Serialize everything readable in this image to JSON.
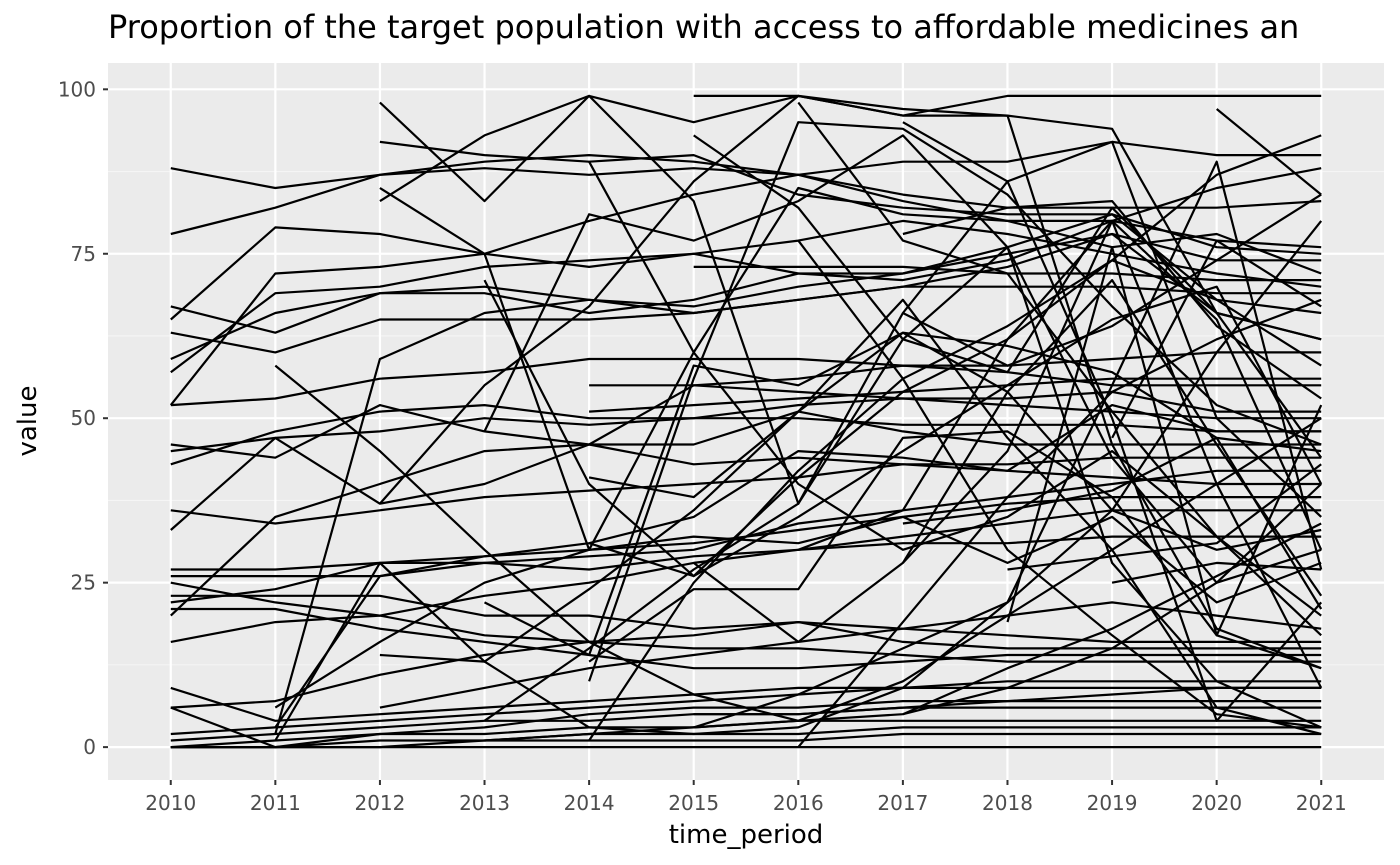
{
  "chart_data": {
    "type": "line",
    "title": "Proportion of the target population with access to affordable medicines an",
    "xlabel": "time_period",
    "ylabel": "value",
    "x": [
      2010,
      2011,
      2012,
      2013,
      2014,
      2015,
      2016,
      2017,
      2018,
      2019,
      2020,
      2021
    ],
    "x_ticks": [
      "2010",
      "2011",
      "2012",
      "2013",
      "2014",
      "2015",
      "2016",
      "2017",
      "2018",
      "2019",
      "2020",
      "2021"
    ],
    "y_ticks": [
      "0",
      "25",
      "50",
      "75",
      "100"
    ],
    "xlim": [
      2009.4,
      2021.6
    ],
    "ylim": [
      -5,
      104
    ],
    "grid": true,
    "colors": {
      "panel_bg": "#ebebeb",
      "grid_major": "#ffffff",
      "grid_minor": "#f5f5f5",
      "line": "#000000"
    },
    "series": [
      {
        "values": [
          88,
          85,
          87,
          88,
          87,
          88,
          87,
          83,
          80,
          80,
          85,
          88
        ]
      },
      {
        "values": [
          78,
          82,
          87,
          89,
          90,
          89,
          87,
          84,
          82,
          82,
          82,
          83
        ]
      },
      {
        "values": [
          65,
          79,
          78,
          75,
          73,
          75,
          77,
          80,
          78,
          75,
          72,
          70
        ]
      },
      {
        "values": [
          52,
          72,
          73,
          75,
          80,
          84,
          87,
          89,
          89,
          92,
          90,
          90
        ]
      },
      {
        "values": [
          57,
          69,
          70,
          73,
          74,
          75,
          72,
          71,
          74,
          80,
          77,
          76
        ]
      },
      {
        "values": [
          67,
          63,
          69,
          70,
          68,
          66,
          68,
          70,
          73,
          78,
          74,
          74
        ]
      },
      {
        "values": [
          59,
          66,
          69,
          69,
          66,
          68,
          72,
          72,
          76,
          81,
          68,
          66
        ]
      },
      {
        "values": [
          63,
          60,
          65,
          65,
          65,
          66,
          68,
          70,
          70,
          70,
          69,
          69
        ]
      },
      {
        "values": [
          52,
          53,
          56,
          57,
          59,
          59,
          59,
          58,
          58,
          59,
          60,
          60
        ]
      },
      {
        "values": [
          46,
          44,
          52,
          48,
          46,
          46,
          51,
          48,
          46,
          46,
          46,
          46
        ]
      },
      {
        "values": [
          45,
          47,
          48,
          50,
          49,
          50,
          52,
          53,
          53,
          54,
          51,
          51
        ]
      },
      {
        "values": [
          43,
          48,
          51,
          52,
          50,
          50,
          50,
          49,
          49,
          49,
          48,
          48
        ]
      },
      {
        "values": [
          36,
          34,
          36,
          38,
          39,
          40,
          41,
          43,
          43,
          44,
          44,
          44
        ]
      },
      {
        "values": [
          33,
          47,
          37,
          40,
          46,
          43,
          44,
          43,
          42,
          41,
          40,
          40
        ]
      },
      {
        "values": [
          27,
          27,
          28,
          29,
          30,
          31,
          33,
          35,
          37,
          38,
          38,
          38
        ]
      },
      {
        "values": [
          26,
          26,
          26,
          28,
          27,
          29,
          30,
          31,
          31,
          32,
          32,
          32
        ]
      },
      {
        "values": [
          25,
          22,
          20,
          17,
          16,
          15,
          15,
          14,
          13,
          13,
          13,
          13
        ]
      },
      {
        "values": [
          23,
          23,
          23,
          20,
          20,
          18,
          19,
          16,
          15,
          15,
          15,
          15
        ]
      },
      {
        "values": [
          22,
          24,
          28,
          28,
          29,
          30,
          34,
          36,
          38,
          40,
          42,
          42
        ]
      },
      {
        "values": [
          21,
          21,
          18,
          16,
          14,
          12,
          12,
          13,
          14,
          14,
          14,
          14
        ]
      },
      {
        "values": [
          20,
          35,
          40,
          45,
          46,
          55,
          56,
          58,
          57,
          55,
          55,
          55
        ]
      },
      {
        "values": [
          16,
          19,
          20,
          23,
          25,
          28,
          30,
          32,
          34,
          36,
          36,
          36
        ]
      },
      {
        "values": [
          9,
          4,
          5,
          6,
          7,
          8,
          9,
          9,
          10,
          10,
          10,
          10
        ]
      },
      {
        "values": [
          6,
          7,
          11,
          14,
          16,
          17,
          19,
          18,
          17,
          16,
          16,
          16
        ]
      },
      {
        "values": [
          6,
          0,
          2,
          3,
          5,
          6,
          6,
          7,
          7,
          7,
          7,
          7
        ]
      },
      {
        "values": [
          2,
          3,
          4,
          5,
          6,
          7,
          8,
          9,
          9,
          9,
          9,
          9
        ]
      },
      {
        "values": [
          1,
          2,
          3,
          4,
          4,
          5,
          5,
          6,
          6,
          6,
          6,
          6
        ]
      },
      {
        "values": [
          0,
          1,
          2,
          2,
          3,
          3,
          4,
          4,
          4,
          4,
          4,
          4
        ]
      },
      {
        "values": [
          0,
          0,
          1,
          1,
          2,
          2,
          2,
          3,
          3,
          3,
          3,
          3
        ]
      },
      {
        "values": [
          0,
          0,
          0,
          1,
          1,
          1,
          1,
          2,
          2,
          2,
          2,
          2
        ]
      },
      {
        "values": [
          0,
          0,
          0,
          0,
          0,
          0,
          0,
          0,
          0,
          0,
          0,
          0
        ]
      },
      {
        "values": [
          null,
          2,
          59,
          66,
          68,
          67,
          70,
          72,
          75,
          78,
          66,
          62
        ]
      },
      {
        "values": [
          null,
          3,
          26,
          29,
          31,
          35,
          45,
          44,
          42,
          52,
          48,
          48
        ]
      },
      {
        "values": [
          null,
          58,
          45,
          30,
          16,
          8,
          4,
          10,
          20,
          30,
          40,
          50
        ]
      },
      {
        "values": [
          null,
          1,
          28,
          13,
          3,
          2,
          3,
          9,
          22,
          36,
          60,
          80
        ]
      },
      {
        "values": [
          null,
          6,
          16,
          25,
          30,
          32,
          31,
          35,
          28,
          35,
          22,
          28
        ]
      },
      {
        "values": [
          null,
          null,
          98,
          83,
          99,
          83,
          37,
          66,
          86,
          50,
          4,
          22
        ]
      },
      {
        "values": [
          null,
          null,
          92,
          90,
          89,
          90,
          84,
          82,
          81,
          81,
          76,
          75
        ]
      },
      {
        "values": [
          null,
          null,
          85,
          75,
          30,
          60,
          85,
          81,
          80,
          76,
          78,
          72
        ]
      },
      {
        "values": [
          null,
          null,
          83,
          93,
          99,
          95,
          99,
          97,
          96,
          46,
          18,
          12
        ]
      },
      {
        "values": [
          null,
          null,
          37,
          55,
          67,
          86,
          99,
          96,
          99,
          99,
          99,
          99
        ]
      },
      {
        "values": [
          null,
          null,
          14,
          13,
          24,
          36,
          51,
          68,
          47,
          30,
          6,
          2
        ]
      },
      {
        "values": [
          null,
          null,
          6,
          9,
          12,
          14,
          16,
          18,
          20,
          22,
          20,
          18
        ]
      },
      {
        "values": [
          null,
          null,
          null,
          71,
          40,
          26,
          35,
          45,
          55,
          65,
          70,
          40
        ]
      },
      {
        "values": [
          null,
          null,
          null,
          48,
          81,
          77,
          83,
          93,
          76,
          28,
          10,
          3
        ]
      },
      {
        "values": [
          null,
          null,
          null,
          22,
          14,
          58,
          55,
          63,
          61,
          57,
          47,
          45
        ]
      },
      {
        "values": [
          null,
          null,
          null,
          4,
          15,
          27,
          37,
          62,
          57,
          82,
          66,
          44
        ]
      },
      {
        "values": [
          null,
          null,
          null,
          1,
          2,
          3,
          4,
          5,
          12,
          18,
          26,
          34
        ]
      },
      {
        "values": [
          null,
          null,
          null,
          null,
          1,
          25,
          42,
          56,
          64,
          74,
          68,
          58
        ]
      },
      {
        "values": [
          null,
          null,
          null,
          null,
          55,
          55,
          54,
          53,
          52,
          51,
          50,
          50
        ]
      },
      {
        "values": [
          null,
          null,
          null,
          null,
          51,
          52,
          53,
          54,
          55,
          56,
          56,
          56
        ]
      },
      {
        "values": [
          null,
          null,
          null,
          null,
          31,
          26,
          41,
          54,
          62,
          74,
          87,
          93
        ]
      },
      {
        "values": [
          null,
          null,
          null,
          null,
          41,
          38,
          51,
          63,
          54,
          36,
          30,
          33
        ]
      },
      {
        "values": [
          null,
          null,
          null,
          null,
          10,
          56,
          95,
          94,
          84,
          67,
          52,
          46
        ]
      },
      {
        "values": [
          null,
          null,
          null,
          null,
          89,
          60,
          40,
          30,
          35,
          45,
          32,
          17
        ]
      },
      {
        "values": [
          null,
          null,
          null,
          null,
          13,
          24,
          24,
          47,
          48,
          38,
          17,
          12
        ]
      },
      {
        "values": [
          null,
          null,
          null,
          null,
          null,
          73,
          73,
          73,
          72,
          72,
          71,
          71
        ]
      },
      {
        "values": [
          null,
          null,
          null,
          null,
          null,
          99,
          99,
          96,
          96,
          94,
          66,
          62
        ]
      },
      {
        "values": [
          null,
          null,
          null,
          null,
          null,
          93,
          82,
          62,
          76,
          44,
          25,
          40
        ]
      },
      {
        "values": [
          null,
          null,
          null,
          null,
          null,
          28,
          16,
          28,
          45,
          80,
          65,
          30
        ]
      },
      {
        "values": [
          null,
          null,
          null,
          null,
          null,
          3,
          8,
          15,
          22,
          55,
          89,
          27
        ]
      },
      {
        "values": [
          null,
          null,
          null,
          null,
          null,
          5,
          5,
          6,
          7,
          8,
          9,
          9
        ]
      },
      {
        "values": [
          null,
          null,
          null,
          null,
          null,
          null,
          98,
          77,
          72,
          51,
          32,
          20
        ]
      },
      {
        "values": [
          null,
          null,
          null,
          null,
          null,
          null,
          77,
          56,
          30,
          17,
          5,
          3
        ]
      },
      {
        "values": [
          null,
          null,
          null,
          null,
          null,
          null,
          30,
          36,
          62,
          80,
          40,
          9
        ]
      },
      {
        "values": [
          null,
          null,
          null,
          null,
          null,
          null,
          0,
          19,
          38,
          54,
          62,
          68
        ]
      },
      {
        "values": [
          null,
          null,
          null,
          null,
          null,
          null,
          null,
          95,
          86,
          92,
          50,
          35
        ]
      },
      {
        "values": [
          null,
          null,
          null,
          null,
          null,
          null,
          null,
          78,
          82,
          83,
          64,
          53
        ]
      },
      {
        "values": [
          null,
          null,
          null,
          null,
          null,
          null,
          null,
          66,
          58,
          64,
          74,
          84
        ]
      },
      {
        "values": [
          null,
          null,
          null,
          null,
          null,
          null,
          null,
          28,
          54,
          71,
          46,
          23
        ]
      },
      {
        "values": [
          null,
          null,
          null,
          null,
          null,
          null,
          null,
          34,
          36,
          39,
          47,
          21
        ]
      },
      {
        "values": [
          null,
          null,
          null,
          null,
          null,
          null,
          null,
          5,
          9,
          15,
          25,
          30
        ]
      },
      {
        "values": [
          null,
          null,
          null,
          null,
          null,
          null,
          null,
          null,
          19,
          76,
          17,
          52
        ]
      },
      {
        "values": [
          null,
          null,
          null,
          null,
          null,
          null,
          null,
          null,
          27,
          29,
          31,
          43
        ]
      },
      {
        "values": [
          null,
          null,
          null,
          null,
          null,
          null,
          null,
          null,
          null,
          25,
          28,
          27
        ]
      },
      {
        "values": [
          null,
          null,
          null,
          null,
          null,
          null,
          null,
          null,
          null,
          47,
          77,
          67
        ]
      },
      {
        "values": [
          null,
          null,
          null,
          null,
          null,
          null,
          null,
          null,
          null,
          null,
          97,
          84
        ]
      }
    ]
  }
}
